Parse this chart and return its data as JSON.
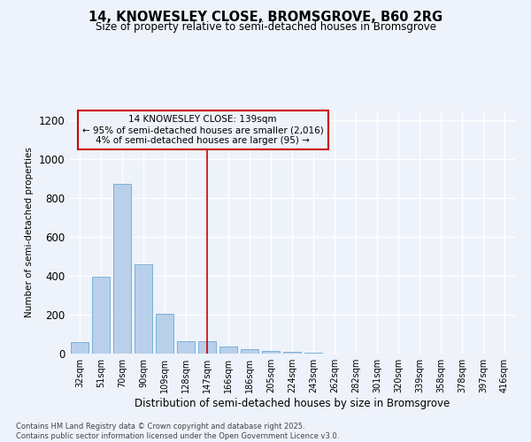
{
  "title1": "14, KNOWESLEY CLOSE, BROMSGROVE, B60 2RG",
  "title2": "Size of property relative to semi-detached houses in Bromsgrove",
  "xlabel": "Distribution of semi-detached houses by size in Bromsgrove",
  "ylabel": "Number of semi-detached properties",
  "bar_labels": [
    "32sqm",
    "51sqm",
    "70sqm",
    "90sqm",
    "109sqm",
    "128sqm",
    "147sqm",
    "166sqm",
    "186sqm",
    "205sqm",
    "224sqm",
    "243sqm",
    "262sqm",
    "282sqm",
    "301sqm",
    "320sqm",
    "339sqm",
    "358sqm",
    "378sqm",
    "397sqm",
    "416sqm"
  ],
  "bar_values": [
    60,
    395,
    875,
    460,
    205,
    65,
    65,
    35,
    25,
    15,
    8,
    3,
    2,
    1,
    1,
    0,
    0,
    0,
    0,
    0,
    0
  ],
  "bar_color": "#b8d0ea",
  "bar_edge_color": "#6aaad4",
  "vline_x": 6,
  "vline_color": "#cc0000",
  "annotation_text": "14 KNOWESLEY CLOSE: 139sqm\n← 95% of semi-detached houses are smaller (2,016)\n4% of semi-detached houses are larger (95) →",
  "annotation_box_color": "#cc0000",
  "ylim": [
    0,
    1250
  ],
  "yticks": [
    0,
    200,
    400,
    600,
    800,
    1000,
    1200
  ],
  "footer": "Contains HM Land Registry data © Crown copyright and database right 2025.\nContains public sector information licensed under the Open Government Licence v3.0.",
  "background_color": "#eef2fa",
  "grid_color": "#ffffff"
}
